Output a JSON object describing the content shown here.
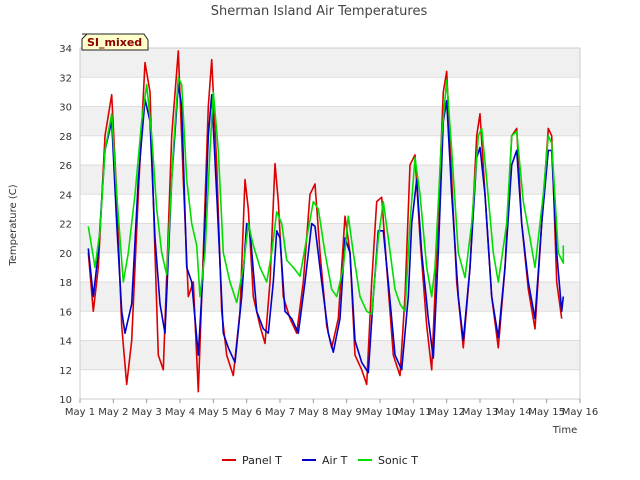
{
  "chart_data": {
    "type": "line",
    "title": "Sherman Island Air Temperatures",
    "xlabel": "Time",
    "ylabel": "Temperature (C)",
    "badge": "SI_mixed",
    "ylim": [
      10,
      34
    ],
    "yticks": [
      10,
      12,
      14,
      16,
      18,
      20,
      22,
      24,
      26,
      28,
      30,
      32,
      34
    ],
    "xlim": [
      1,
      16
    ],
    "xticks": [
      {
        "v": 1,
        "label": "May 1"
      },
      {
        "v": 2,
        "label": "May 2"
      },
      {
        "v": 3,
        "label": "May 3"
      },
      {
        "v": 4,
        "label": "May 4"
      },
      {
        "v": 5,
        "label": "May 5"
      },
      {
        "v": 6,
        "label": "May 6"
      },
      {
        "v": 7,
        "label": "May 7"
      },
      {
        "v": 8,
        "label": "May 8"
      },
      {
        "v": 9,
        "label": "May 9"
      },
      {
        "v": 10,
        "label": "May 10"
      },
      {
        "v": 11,
        "label": "May 11"
      },
      {
        "v": 12,
        "label": "May 12"
      },
      {
        "v": 13,
        "label": "May 13"
      },
      {
        "v": 14,
        "label": "May 14"
      },
      {
        "v": 15,
        "label": "May 15"
      },
      {
        "v": 16,
        "label": "May 16"
      }
    ],
    "grid": true,
    "legend_position": "bottom-center",
    "series": [
      {
        "name": "Panel T",
        "color": "#dd0000",
        "points": [
          [
            1.25,
            20.0
          ],
          [
            1.4,
            16.0
          ],
          [
            1.55,
            19.0
          ],
          [
            1.75,
            28.0
          ],
          [
            1.95,
            30.8
          ],
          [
            2.1,
            24.0
          ],
          [
            2.25,
            15.0
          ],
          [
            2.4,
            11.0
          ],
          [
            2.55,
            14.0
          ],
          [
            2.75,
            24.0
          ],
          [
            2.95,
            33.0
          ],
          [
            3.1,
            31.0
          ],
          [
            3.25,
            20.0
          ],
          [
            3.35,
            13.0
          ],
          [
            3.5,
            12.0
          ],
          [
            3.75,
            28.0
          ],
          [
            3.95,
            33.8
          ],
          [
            4.1,
            25.0
          ],
          [
            4.25,
            17.0
          ],
          [
            4.4,
            18.0
          ],
          [
            4.55,
            10.5
          ],
          [
            4.7,
            20.0
          ],
          [
            4.85,
            30.0
          ],
          [
            4.95,
            33.2
          ],
          [
            5.1,
            26.0
          ],
          [
            5.25,
            16.0
          ],
          [
            5.4,
            13.0
          ],
          [
            5.6,
            11.6
          ],
          [
            5.8,
            16.0
          ],
          [
            5.95,
            25.0
          ],
          [
            6.05,
            23.0
          ],
          [
            6.2,
            17.0
          ],
          [
            6.4,
            15.0
          ],
          [
            6.55,
            13.8
          ],
          [
            6.7,
            18.0
          ],
          [
            6.85,
            26.1
          ],
          [
            6.95,
            23.5
          ],
          [
            7.1,
            17.0
          ],
          [
            7.3,
            15.5
          ],
          [
            7.5,
            14.5
          ],
          [
            7.7,
            18.0
          ],
          [
            7.9,
            24.0
          ],
          [
            8.05,
            24.7
          ],
          [
            8.2,
            20.0
          ],
          [
            8.4,
            15.0
          ],
          [
            8.55,
            13.5
          ],
          [
            8.75,
            15.5
          ],
          [
            8.95,
            22.5
          ],
          [
            9.1,
            20.0
          ],
          [
            9.25,
            13.0
          ],
          [
            9.45,
            12.0
          ],
          [
            9.6,
            11.0
          ],
          [
            9.75,
            18.0
          ],
          [
            9.9,
            23.5
          ],
          [
            10.05,
            23.8
          ],
          [
            10.2,
            19.0
          ],
          [
            10.4,
            13.0
          ],
          [
            10.6,
            11.6
          ],
          [
            10.75,
            17.0
          ],
          [
            10.9,
            26.0
          ],
          [
            11.05,
            26.7
          ],
          [
            11.2,
            21.0
          ],
          [
            11.4,
            15.0
          ],
          [
            11.55,
            12.0
          ],
          [
            11.7,
            20.0
          ],
          [
            11.9,
            31.0
          ],
          [
            12.0,
            32.4
          ],
          [
            12.15,
            25.0
          ],
          [
            12.3,
            18.0
          ],
          [
            12.5,
            13.5
          ],
          [
            12.7,
            19.0
          ],
          [
            12.9,
            28.0
          ],
          [
            13.0,
            29.5
          ],
          [
            13.15,
            24.0
          ],
          [
            13.35,
            17.0
          ],
          [
            13.55,
            13.5
          ],
          [
            13.75,
            19.0
          ],
          [
            13.95,
            28.0
          ],
          [
            14.1,
            28.5
          ],
          [
            14.25,
            22.0
          ],
          [
            14.45,
            17.5
          ],
          [
            14.65,
            14.8
          ],
          [
            14.85,
            22.0
          ],
          [
            15.05,
            28.5
          ],
          [
            15.15,
            28.0
          ],
          [
            15.3,
            18.0
          ],
          [
            15.45,
            15.5
          ]
        ]
      },
      {
        "name": "Air T",
        "color": "#0000cc",
        "points": [
          [
            1.25,
            20.3
          ],
          [
            1.4,
            17.0
          ],
          [
            1.55,
            20.0
          ],
          [
            1.75,
            27.0
          ],
          [
            1.95,
            29.0
          ],
          [
            2.1,
            22.0
          ],
          [
            2.25,
            16.0
          ],
          [
            2.35,
            14.5
          ],
          [
            2.55,
            16.5
          ],
          [
            2.75,
            25.0
          ],
          [
            2.95,
            30.5
          ],
          [
            3.1,
            29.0
          ],
          [
            3.25,
            21.0
          ],
          [
            3.4,
            16.5
          ],
          [
            3.55,
            14.5
          ],
          [
            3.75,
            25.0
          ],
          [
            3.95,
            31.5
          ],
          [
            4.05,
            30.0
          ],
          [
            4.2,
            19.0
          ],
          [
            4.35,
            18.0
          ],
          [
            4.55,
            13.0
          ],
          [
            4.7,
            19.0
          ],
          [
            4.85,
            28.0
          ],
          [
            4.95,
            30.8
          ],
          [
            5.1,
            24.0
          ],
          [
            5.3,
            14.5
          ],
          [
            5.45,
            13.5
          ],
          [
            5.65,
            12.5
          ],
          [
            5.85,
            17.0
          ],
          [
            6.0,
            22.0
          ],
          [
            6.1,
            21.5
          ],
          [
            6.3,
            16.0
          ],
          [
            6.5,
            14.8
          ],
          [
            6.65,
            14.5
          ],
          [
            6.8,
            18.0
          ],
          [
            6.9,
            21.5
          ],
          [
            7.0,
            21.0
          ],
          [
            7.15,
            16.0
          ],
          [
            7.35,
            15.5
          ],
          [
            7.55,
            14.5
          ],
          [
            7.75,
            18.0
          ],
          [
            7.95,
            22.0
          ],
          [
            8.05,
            21.8
          ],
          [
            8.25,
            18.0
          ],
          [
            8.45,
            14.5
          ],
          [
            8.6,
            13.2
          ],
          [
            8.8,
            15.5
          ],
          [
            8.95,
            21.0
          ],
          [
            9.1,
            20.0
          ],
          [
            9.25,
            14.0
          ],
          [
            9.45,
            12.5
          ],
          [
            9.65,
            11.8
          ],
          [
            9.8,
            17.0
          ],
          [
            9.95,
            21.5
          ],
          [
            10.1,
            21.5
          ],
          [
            10.25,
            18.0
          ],
          [
            10.45,
            13.0
          ],
          [
            10.65,
            12.0
          ],
          [
            10.85,
            17.0
          ],
          [
            10.95,
            22.0
          ],
          [
            11.1,
            25.0
          ],
          [
            11.25,
            20.0
          ],
          [
            11.45,
            15.5
          ],
          [
            11.6,
            12.8
          ],
          [
            11.75,
            20.0
          ],
          [
            11.9,
            29.0
          ],
          [
            12.0,
            30.4
          ],
          [
            12.15,
            24.0
          ],
          [
            12.35,
            17.0
          ],
          [
            12.5,
            14.0
          ],
          [
            12.7,
            19.0
          ],
          [
            12.9,
            26.5
          ],
          [
            13.0,
            27.2
          ],
          [
            13.15,
            24.0
          ],
          [
            13.35,
            17.0
          ],
          [
            13.55,
            14.2
          ],
          [
            13.75,
            19.0
          ],
          [
            13.95,
            26.0
          ],
          [
            14.1,
            27.0
          ],
          [
            14.25,
            22.0
          ],
          [
            14.45,
            18.0
          ],
          [
            14.65,
            15.5
          ],
          [
            14.85,
            22.0
          ],
          [
            15.05,
            27.0
          ],
          [
            15.15,
            27.0
          ],
          [
            15.3,
            20.0
          ],
          [
            15.45,
            16.0
          ],
          [
            15.5,
            17.0
          ]
        ]
      },
      {
        "name": "Sonic T",
        "color": "#00dd00",
        "points": [
          [
            1.25,
            21.8
          ],
          [
            1.45,
            19.0
          ],
          [
            1.6,
            21.5
          ],
          [
            1.75,
            27.0
          ],
          [
            1.95,
            29.5
          ],
          [
            2.1,
            24.0
          ],
          [
            2.3,
            18.0
          ],
          [
            2.45,
            20.0
          ],
          [
            2.65,
            24.0
          ],
          [
            2.85,
            29.0
          ],
          [
            3.0,
            31.5
          ],
          [
            3.15,
            28.0
          ],
          [
            3.3,
            23.0
          ],
          [
            3.45,
            20.0
          ],
          [
            3.6,
            18.5
          ],
          [
            3.8,
            27.0
          ],
          [
            3.95,
            32.0
          ],
          [
            4.05,
            31.5
          ],
          [
            4.2,
            25.0
          ],
          [
            4.35,
            22.0
          ],
          [
            4.5,
            20.5
          ],
          [
            4.6,
            17.0
          ],
          [
            4.75,
            20.0
          ],
          [
            4.9,
            27.0
          ],
          [
            5.0,
            31.0
          ],
          [
            5.15,
            27.0
          ],
          [
            5.3,
            20.0
          ],
          [
            5.5,
            18.0
          ],
          [
            5.7,
            16.6
          ],
          [
            5.9,
            19.0
          ],
          [
            6.05,
            22.0
          ],
          [
            6.2,
            20.5
          ],
          [
            6.4,
            19.0
          ],
          [
            6.6,
            18.0
          ],
          [
            6.75,
            20.0
          ],
          [
            6.9,
            22.8
          ],
          [
            7.05,
            22.0
          ],
          [
            7.2,
            19.5
          ],
          [
            7.4,
            19.0
          ],
          [
            7.6,
            18.4
          ],
          [
            7.8,
            21.0
          ],
          [
            8.0,
            23.5
          ],
          [
            8.15,
            23.0
          ],
          [
            8.35,
            20.0
          ],
          [
            8.55,
            17.5
          ],
          [
            8.7,
            17.0
          ],
          [
            8.9,
            19.0
          ],
          [
            9.05,
            22.5
          ],
          [
            9.2,
            20.0
          ],
          [
            9.4,
            17.0
          ],
          [
            9.6,
            16.0
          ],
          [
            9.75,
            15.8
          ],
          [
            9.95,
            21.0
          ],
          [
            10.1,
            23.5
          ],
          [
            10.25,
            21.0
          ],
          [
            10.45,
            17.5
          ],
          [
            10.6,
            16.5
          ],
          [
            10.75,
            16.0
          ],
          [
            10.9,
            22.0
          ],
          [
            11.05,
            26.5
          ],
          [
            11.2,
            24.0
          ],
          [
            11.4,
            19.0
          ],
          [
            11.55,
            17.0
          ],
          [
            11.65,
            19.0
          ],
          [
            11.85,
            28.0
          ],
          [
            12.0,
            31.8
          ],
          [
            12.15,
            27.0
          ],
          [
            12.35,
            20.0
          ],
          [
            12.55,
            18.3
          ],
          [
            12.75,
            22.0
          ],
          [
            12.95,
            28.0
          ],
          [
            13.05,
            28.5
          ],
          [
            13.2,
            25.0
          ],
          [
            13.4,
            20.0
          ],
          [
            13.55,
            18.0
          ],
          [
            13.8,
            22.0
          ],
          [
            13.95,
            28.0
          ],
          [
            14.1,
            28.3
          ],
          [
            14.3,
            23.5
          ],
          [
            14.5,
            21.0
          ],
          [
            14.65,
            19.0
          ],
          [
            14.9,
            24.0
          ],
          [
            15.05,
            28.0
          ],
          [
            15.15,
            27.5
          ],
          [
            15.35,
            20.0
          ],
          [
            15.5,
            19.3
          ],
          [
            15.5,
            20.5
          ]
        ]
      }
    ]
  }
}
